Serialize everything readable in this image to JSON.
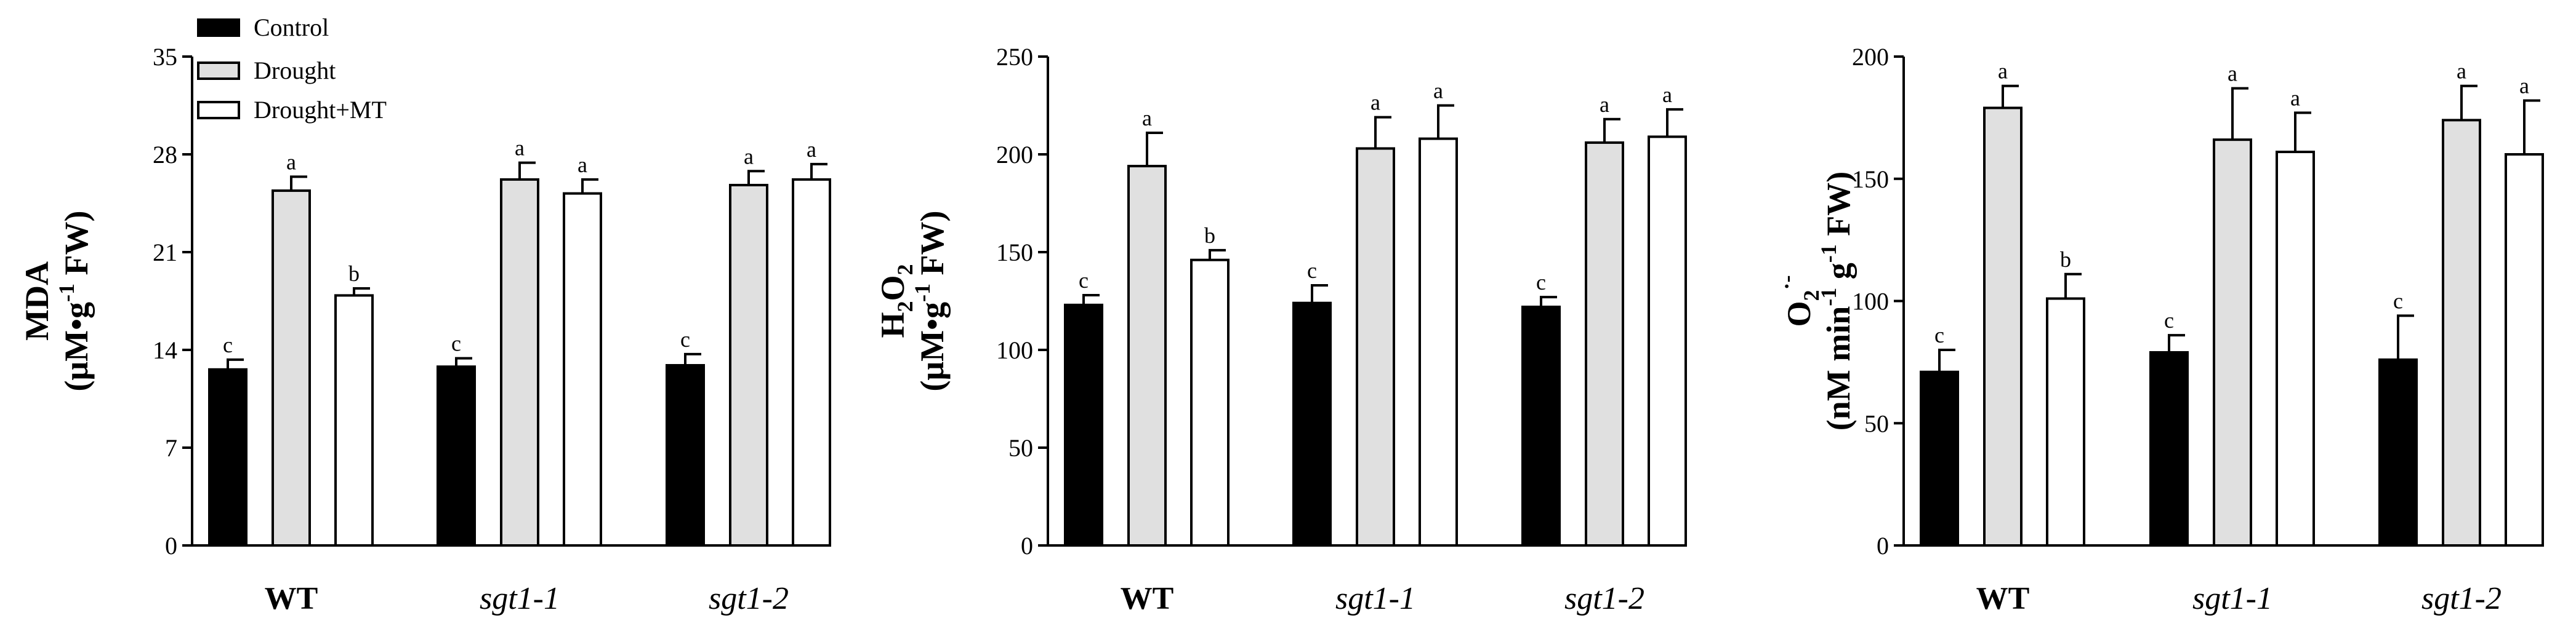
{
  "chart_data": [
    {
      "type": "bar",
      "ylabel": {
        "main": "MDA",
        "unit": [
          "(μM",
          "•",
          "g",
          "-1",
          " FW)"
        ]
      },
      "ylim": [
        0,
        35
      ],
      "yticks": [
        0,
        7,
        14,
        21,
        28,
        35
      ],
      "categories": [
        "WT",
        "sgt1-1",
        "sgt1-2"
      ],
      "category_style": [
        "bold",
        "italic",
        "italic"
      ],
      "legend": [
        {
          "name": "Control",
          "fill": "#000000"
        },
        {
          "name": "Drought",
          "fill": "#e0e0e0"
        },
        {
          "name": "Drought+MT",
          "fill": "#ffffff"
        }
      ],
      "series": [
        {
          "name": "Control",
          "values": [
            12.6,
            12.8,
            12.9
          ],
          "errors": [
            0.7,
            0.6,
            0.8
          ],
          "labels": [
            "c",
            "c",
            "c"
          ]
        },
        {
          "name": "Drought",
          "values": [
            25.4,
            26.2,
            25.8
          ],
          "errors": [
            1.0,
            1.2,
            1.0
          ],
          "labels": [
            "a",
            "a",
            "a"
          ]
        },
        {
          "name": "Drought+MT",
          "values": [
            17.9,
            25.2,
            26.2
          ],
          "errors": [
            0.5,
            1.0,
            1.1
          ],
          "labels": [
            "b",
            "a",
            "a"
          ]
        }
      ]
    },
    {
      "type": "bar",
      "ylabel": {
        "main": "H2O2",
        "unit": [
          "(μM",
          "•",
          "g",
          "-1",
          " FW)"
        ]
      },
      "ylim": [
        0,
        250
      ],
      "yticks": [
        0,
        50,
        100,
        150,
        200,
        250
      ],
      "categories": [
        "WT",
        "sgt1-1",
        "sgt1-2"
      ],
      "category_style": [
        "bold",
        "italic",
        "italic"
      ],
      "series": [
        {
          "name": "Control",
          "values": [
            123,
            124,
            122
          ],
          "errors": [
            5,
            9,
            5
          ],
          "labels": [
            "c",
            "c",
            "c"
          ]
        },
        {
          "name": "Drought",
          "values": [
            194,
            203,
            206
          ],
          "errors": [
            17,
            16,
            12
          ],
          "labels": [
            "a",
            "a",
            "a"
          ]
        },
        {
          "name": "Drought+MT",
          "values": [
            146,
            208,
            209
          ],
          "errors": [
            5,
            17,
            14
          ],
          "labels": [
            "b",
            "a",
            "a"
          ]
        }
      ]
    },
    {
      "type": "bar",
      "ylabel": {
        "main": "O2·-",
        "unit": [
          "(nM min",
          "-1",
          " g",
          "-1",
          " FW)"
        ]
      },
      "ylim": [
        0,
        200
      ],
      "yticks": [
        0,
        50,
        100,
        150,
        200
      ],
      "categories": [
        "WT",
        "sgt1-1",
        "sgt1-2"
      ],
      "category_style": [
        "bold",
        "italic",
        "italic"
      ],
      "series": [
        {
          "name": "Control",
          "values": [
            71,
            79,
            76
          ],
          "errors": [
            9,
            7,
            18
          ],
          "labels": [
            "c",
            "c",
            "c"
          ]
        },
        {
          "name": "Drought",
          "values": [
            179,
            166,
            174
          ],
          "errors": [
            9,
            21,
            14
          ],
          "labels": [
            "a",
            "a",
            "a"
          ]
        },
        {
          "name": "Drought+MT",
          "values": [
            101,
            161,
            160
          ],
          "errors": [
            10,
            16,
            22
          ],
          "labels": [
            "b",
            "a",
            "a"
          ]
        }
      ]
    }
  ]
}
